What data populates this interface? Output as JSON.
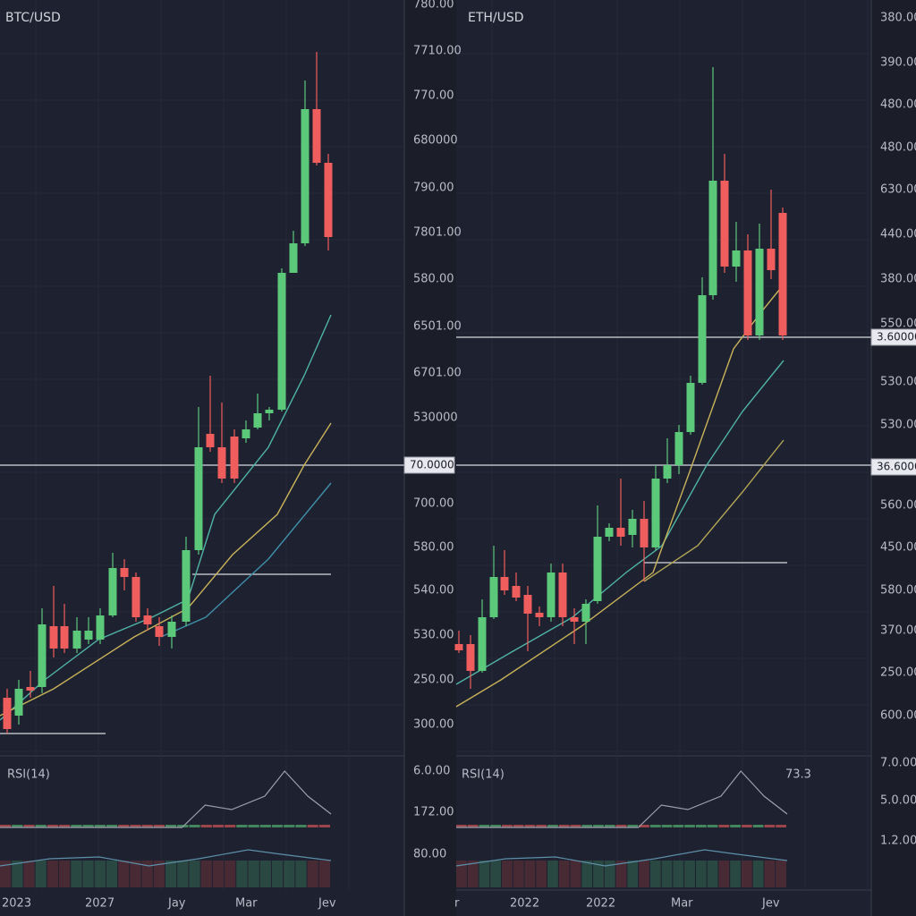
{
  "panels": [
    {
      "symbol": "BTC/USD",
      "price_labels": [
        "780.00",
        "7710.00",
        "770.00",
        "680000",
        "790.00",
        "7801.00",
        "580.00",
        "6501.00",
        "6701.00",
        "530000",
        "70.0000",
        "700.00",
        "580.00",
        "540.00",
        "530.00",
        "250.00",
        "300.00"
      ],
      "rsi_label": "RSI(14)",
      "rsi_axis_labels": [
        "6.0.00",
        "172.00",
        "80.00"
      ],
      "x_labels": [
        "2023",
        "2027",
        "Jay",
        "Mar",
        "Jev"
      ]
    },
    {
      "symbol": "ETH/USD",
      "price_labels": [
        "380.00",
        "390.00",
        "480.00",
        "480.00",
        "630.00",
        "440.00",
        "380.00",
        "550.00",
        "3.60000",
        "530.00",
        "530.00",
        "36.6000",
        "560.00",
        "450.00",
        "580.00",
        "370.00",
        "250.00",
        "600.00"
      ],
      "rsi_label": "RSI(14)",
      "rsi_value": "73.3",
      "rsi_axis_labels": [
        "7.0.00",
        "5.0.00",
        "1.2.00"
      ],
      "x_labels": [
        "r",
        "2022",
        "2022",
        "Mar",
        "Jev"
      ]
    }
  ]
}
